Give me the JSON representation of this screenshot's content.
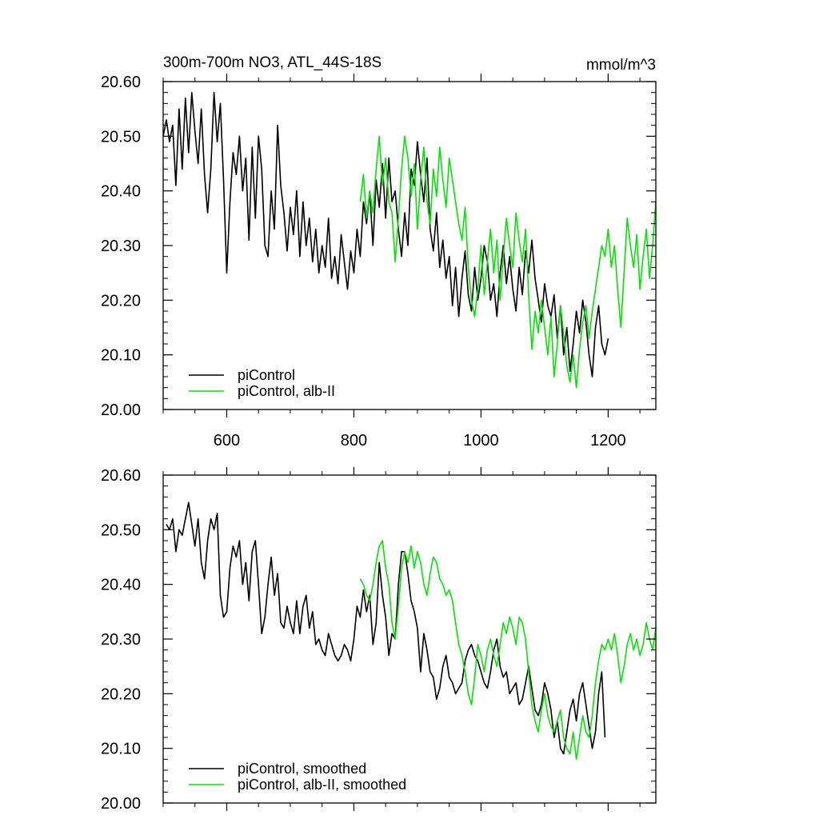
{
  "header": {
    "title": "300m-700m NO3, ATL_44S-18S",
    "units": "mmol/m^3"
  },
  "colors": {
    "picontrol": "#000000",
    "alb": "#00e600",
    "axis": "#000000"
  },
  "chart_data": [
    {
      "type": "line",
      "panel": "top",
      "xlim": [
        500,
        1275
      ],
      "ylim": [
        20.0,
        20.6
      ],
      "x_ticks": [
        600,
        800,
        1000,
        1200
      ],
      "x_tick_labels": [
        "600",
        "800",
        "1000",
        "1200"
      ],
      "y_ticks": [
        20.0,
        20.1,
        20.2,
        20.3,
        20.4,
        20.5,
        20.6
      ],
      "y_tick_labels": [
        "20.00",
        "20.10",
        "20.20",
        "20.30",
        "20.40",
        "20.50",
        "20.60"
      ],
      "legend": {
        "placement": "bottom-left",
        "entries": [
          "piControl",
          "piControl, alb-II"
        ]
      },
      "series": [
        {
          "name": "piControl",
          "color_key": "picontrol",
          "x": [
            500,
            505,
            510,
            515,
            520,
            525,
            530,
            535,
            540,
            545,
            550,
            555,
            560,
            565,
            570,
            575,
            580,
            585,
            590,
            595,
            600,
            605,
            610,
            615,
            620,
            625,
            630,
            635,
            640,
            645,
            650,
            655,
            660,
            665,
            670,
            675,
            680,
            685,
            690,
            695,
            700,
            705,
            710,
            715,
            720,
            725,
            730,
            735,
            740,
            745,
            750,
            755,
            760,
            765,
            770,
            775,
            780,
            785,
            790,
            795,
            800,
            805,
            810,
            815,
            820,
            825,
            830,
            835,
            840,
            845,
            850,
            855,
            860,
            865,
            870,
            875,
            880,
            885,
            890,
            895,
            900,
            905,
            910,
            915,
            920,
            925,
            930,
            935,
            940,
            945,
            950,
            955,
            960,
            965,
            970,
            975,
            980,
            985,
            990,
            995,
            1000,
            1005,
            1010,
            1015,
            1020,
            1025,
            1030,
            1035,
            1040,
            1045,
            1050,
            1055,
            1060,
            1065,
            1070,
            1075,
            1080,
            1085,
            1090,
            1095,
            1100,
            1105,
            1110,
            1115,
            1120,
            1125,
            1130,
            1135,
            1140,
            1145,
            1150,
            1155,
            1160,
            1165,
            1170,
            1175,
            1180,
            1185,
            1190,
            1195,
            1200
          ],
          "y": [
            20.5,
            20.53,
            20.49,
            20.52,
            20.41,
            20.55,
            20.44,
            20.57,
            20.47,
            20.58,
            20.51,
            20.45,
            20.55,
            20.43,
            20.36,
            20.44,
            20.58,
            20.49,
            20.56,
            20.42,
            20.25,
            20.38,
            20.47,
            20.43,
            20.5,
            20.4,
            20.46,
            20.31,
            20.48,
            20.35,
            20.5,
            20.44,
            20.3,
            20.28,
            20.4,
            20.33,
            20.52,
            20.41,
            20.36,
            20.29,
            20.37,
            20.32,
            20.4,
            20.28,
            20.38,
            20.3,
            20.35,
            20.27,
            20.33,
            20.25,
            20.3,
            20.26,
            20.35,
            20.24,
            20.28,
            20.23,
            20.32,
            20.27,
            20.22,
            20.29,
            20.25,
            20.33,
            20.28,
            20.38,
            20.34,
            20.4,
            20.3,
            20.42,
            20.37,
            20.45,
            20.35,
            20.46,
            20.38,
            20.4,
            20.33,
            20.28,
            20.36,
            20.3,
            20.44,
            20.41,
            20.49,
            20.43,
            20.38,
            20.46,
            20.33,
            20.29,
            20.36,
            20.26,
            20.31,
            20.24,
            20.28,
            20.19,
            20.26,
            20.17,
            20.24,
            20.29,
            20.21,
            20.18,
            20.26,
            20.2,
            20.24,
            20.3,
            20.27,
            20.2,
            20.23,
            20.17,
            20.25,
            20.3,
            20.23,
            20.28,
            20.22,
            20.18,
            20.26,
            20.21,
            20.29,
            20.25,
            20.31,
            20.24,
            20.2,
            20.16,
            20.23,
            20.19,
            20.17,
            20.21,
            20.13,
            20.19,
            20.1,
            20.15,
            20.07,
            20.12,
            20.18,
            20.14,
            20.2,
            20.16,
            20.1,
            20.06,
            20.15,
            20.19,
            20.12,
            20.1,
            20.13
          ]
        },
        {
          "name": "piControl, alb-II",
          "color_key": "alb",
          "x": [
            810,
            815,
            820,
            825,
            830,
            835,
            840,
            845,
            850,
            855,
            860,
            865,
            870,
            875,
            880,
            885,
            890,
            895,
            900,
            905,
            910,
            915,
            920,
            925,
            930,
            935,
            940,
            945,
            950,
            955,
            960,
            965,
            970,
            975,
            980,
            985,
            990,
            995,
            1000,
            1005,
            1010,
            1015,
            1020,
            1025,
            1030,
            1035,
            1040,
            1045,
            1050,
            1055,
            1060,
            1065,
            1070,
            1075,
            1080,
            1085,
            1090,
            1095,
            1100,
            1105,
            1110,
            1115,
            1120,
            1125,
            1130,
            1135,
            1140,
            1145,
            1150,
            1155,
            1160,
            1165,
            1170,
            1175,
            1180,
            1185,
            1190,
            1195,
            1200,
            1205,
            1210,
            1215,
            1220,
            1225,
            1230,
            1235,
            1240,
            1245,
            1250,
            1255,
            1260,
            1265,
            1270,
            1275
          ],
          "y": [
            20.38,
            20.43,
            20.35,
            20.4,
            20.36,
            20.44,
            20.5,
            20.41,
            20.46,
            20.38,
            20.36,
            20.27,
            20.35,
            20.44,
            20.5,
            20.46,
            20.39,
            20.45,
            20.33,
            20.42,
            20.48,
            20.38,
            20.34,
            20.44,
            20.39,
            20.48,
            20.42,
            20.37,
            20.46,
            20.42,
            20.38,
            20.34,
            20.31,
            20.37,
            20.26,
            20.2,
            20.17,
            20.22,
            20.3,
            20.21,
            20.27,
            20.33,
            20.25,
            20.31,
            20.2,
            20.28,
            20.35,
            20.3,
            20.26,
            20.36,
            20.31,
            20.27,
            20.33,
            20.21,
            20.11,
            20.18,
            20.14,
            20.2,
            20.15,
            20.1,
            20.17,
            20.06,
            20.12,
            20.19,
            20.14,
            20.08,
            20.05,
            20.1,
            20.04,
            20.11,
            20.16,
            20.19,
            20.13,
            20.18,
            20.22,
            20.26,
            20.3,
            20.28,
            20.33,
            20.26,
            20.3,
            20.22,
            20.15,
            20.25,
            20.35,
            20.3,
            20.26,
            20.32,
            20.22,
            20.28,
            20.33,
            20.24,
            20.3,
            20.38
          ]
        }
      ]
    },
    {
      "type": "line",
      "panel": "bottom",
      "xlim": [
        500,
        1275
      ],
      "ylim": [
        20.0,
        20.6
      ],
      "x_ticks": [
        600,
        800,
        1000,
        1200
      ],
      "y_ticks": [
        20.0,
        20.1,
        20.2,
        20.3,
        20.4,
        20.5,
        20.6
      ],
      "y_tick_labels": [
        "20.00",
        "20.10",
        "20.20",
        "20.30",
        "20.40",
        "20.50",
        "20.60"
      ],
      "legend": {
        "placement": "bottom-left",
        "entries": [
          "piControl, smoothed",
          "piControl, alb-II, smoothed"
        ]
      },
      "series": [
        {
          "name": "piControl, smoothed",
          "color_key": "picontrol",
          "x": [
            505,
            510,
            515,
            520,
            525,
            530,
            535,
            540,
            545,
            550,
            555,
            560,
            565,
            570,
            575,
            580,
            585,
            590,
            595,
            600,
            605,
            610,
            615,
            620,
            625,
            630,
            635,
            640,
            645,
            650,
            655,
            660,
            665,
            670,
            675,
            680,
            685,
            690,
            695,
            700,
            705,
            710,
            715,
            720,
            725,
            730,
            735,
            740,
            745,
            750,
            755,
            760,
            765,
            770,
            775,
            780,
            785,
            790,
            795,
            800,
            805,
            810,
            815,
            820,
            825,
            830,
            835,
            840,
            845,
            850,
            855,
            860,
            865,
            870,
            875,
            880,
            885,
            890,
            895,
            900,
            905,
            910,
            915,
            920,
            925,
            930,
            935,
            940,
            945,
            950,
            955,
            960,
            965,
            970,
            975,
            980,
            985,
            990,
            995,
            1000,
            1005,
            1010,
            1015,
            1020,
            1025,
            1030,
            1035,
            1040,
            1045,
            1050,
            1055,
            1060,
            1065,
            1070,
            1075,
            1080,
            1085,
            1090,
            1095,
            1100,
            1105,
            1110,
            1115,
            1120,
            1125,
            1130,
            1135,
            1140,
            1145,
            1150,
            1155,
            1160,
            1165,
            1170,
            1175,
            1180,
            1185,
            1190,
            1195
          ],
          "y": [
            20.51,
            20.5,
            20.52,
            20.46,
            20.5,
            20.49,
            20.52,
            20.55,
            20.51,
            20.47,
            20.52,
            20.44,
            20.41,
            20.48,
            20.52,
            20.5,
            20.53,
            20.38,
            20.34,
            20.35,
            20.43,
            20.47,
            20.45,
            20.48,
            20.4,
            20.44,
            20.37,
            20.46,
            20.48,
            20.4,
            20.31,
            20.34,
            20.4,
            20.45,
            20.38,
            20.42,
            20.33,
            20.32,
            20.36,
            20.33,
            20.31,
            20.37,
            20.31,
            20.36,
            20.38,
            20.32,
            20.35,
            20.29,
            20.3,
            20.28,
            20.27,
            20.31,
            20.29,
            20.27,
            20.26,
            20.27,
            20.29,
            20.28,
            20.26,
            20.3,
            20.36,
            20.34,
            20.39,
            20.35,
            20.38,
            20.29,
            20.33,
            20.44,
            20.38,
            20.34,
            20.27,
            20.31,
            20.3,
            20.4,
            20.46,
            20.46,
            20.42,
            20.37,
            20.35,
            20.32,
            20.24,
            20.31,
            20.28,
            20.24,
            20.23,
            20.19,
            20.21,
            20.25,
            20.27,
            20.23,
            20.22,
            20.2,
            20.21,
            20.22,
            20.26,
            20.28,
            20.29,
            20.27,
            20.26,
            20.24,
            20.22,
            20.21,
            20.24,
            20.28,
            20.3,
            20.25,
            20.23,
            20.24,
            20.2,
            20.21,
            20.22,
            20.18,
            20.19,
            20.22,
            20.25,
            20.21,
            20.17,
            20.16,
            20.18,
            20.22,
            20.2,
            20.17,
            20.12,
            20.15,
            20.1,
            20.09,
            20.13,
            20.17,
            20.19,
            20.15,
            20.2,
            20.22,
            20.18,
            20.14,
            20.1,
            20.13,
            20.2,
            20.24,
            20.12
          ]
        },
        {
          "name": "piControl, alb-II, smoothed",
          "color_key": "alb",
          "x": [
            810,
            815,
            820,
            825,
            830,
            835,
            840,
            845,
            850,
            855,
            860,
            865,
            870,
            875,
            880,
            885,
            890,
            895,
            900,
            905,
            910,
            915,
            920,
            925,
            930,
            935,
            940,
            945,
            950,
            955,
            960,
            965,
            970,
            975,
            980,
            985,
            990,
            995,
            1000,
            1005,
            1010,
            1015,
            1020,
            1025,
            1030,
            1035,
            1040,
            1045,
            1050,
            1055,
            1060,
            1065,
            1070,
            1075,
            1080,
            1085,
            1090,
            1095,
            1100,
            1105,
            1110,
            1115,
            1120,
            1125,
            1130,
            1135,
            1140,
            1145,
            1150,
            1155,
            1160,
            1165,
            1170,
            1175,
            1180,
            1185,
            1190,
            1195,
            1200,
            1205,
            1210,
            1215,
            1220,
            1225,
            1230,
            1235,
            1240,
            1245,
            1250,
            1255,
            1260,
            1265,
            1270,
            1275
          ],
          "y": [
            20.41,
            20.4,
            20.38,
            20.37,
            20.4,
            20.44,
            20.47,
            20.48,
            20.43,
            20.4,
            20.33,
            20.3,
            20.36,
            20.43,
            20.46,
            20.44,
            20.47,
            20.43,
            20.46,
            20.44,
            20.4,
            20.38,
            20.42,
            20.45,
            20.44,
            20.41,
            20.4,
            20.38,
            20.39,
            20.37,
            20.33,
            20.29,
            20.27,
            20.24,
            20.2,
            20.18,
            20.23,
            20.29,
            20.27,
            20.24,
            20.28,
            20.3,
            20.27,
            20.25,
            20.29,
            20.33,
            20.31,
            20.34,
            20.32,
            20.29,
            20.34,
            20.33,
            20.3,
            20.24,
            20.18,
            20.15,
            20.13,
            20.17,
            20.2,
            20.16,
            20.14,
            20.13,
            20.15,
            20.17,
            20.12,
            20.1,
            20.09,
            20.13,
            20.08,
            20.12,
            20.16,
            20.13,
            20.12,
            20.16,
            20.22,
            20.26,
            20.29,
            20.28,
            20.3,
            20.28,
            20.31,
            20.27,
            20.22,
            20.25,
            20.29,
            20.31,
            20.28,
            20.3,
            20.27,
            20.29,
            20.33,
            20.3,
            20.28,
            20.32
          ]
        }
      ]
    }
  ]
}
